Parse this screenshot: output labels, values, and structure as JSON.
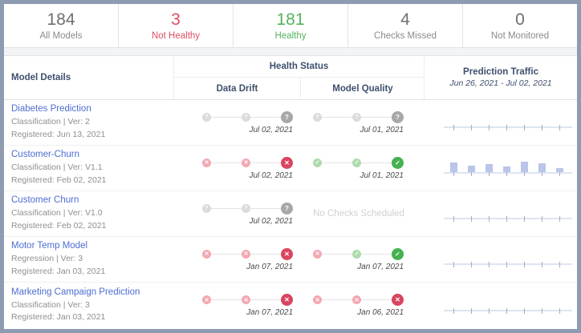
{
  "colors": {
    "frame": "#8e9cb2",
    "not_healthy_red": "#dd4f63",
    "healthy_green": "#54b25e",
    "link_blue": "#4e6dd2",
    "fail_dot": "#d9455f",
    "pass_dot": "#45b14f",
    "unknown_dot": "#a8a8a8",
    "traffic_bar": "#b9c5e9"
  },
  "summary_cards": [
    {
      "value": "184",
      "label": "All Models",
      "tone": "gray"
    },
    {
      "value": "3",
      "label": "Not Healthy",
      "tone": "red"
    },
    {
      "value": "181",
      "label": "Healthy",
      "tone": "green"
    },
    {
      "value": "4",
      "label": "Checks Missed",
      "tone": "gray"
    },
    {
      "value": "0",
      "label": "Not Monitored",
      "tone": "gray"
    }
  ],
  "table": {
    "headers": {
      "model_details": "Model Details",
      "health_status": "Health Status",
      "data_drift": "Data Drift",
      "model_quality": "Model Quality",
      "prediction_traffic": "Prediction Traffic",
      "traffic_range": "Jun 26, 2021 - Jul 02, 2021"
    },
    "rows": [
      {
        "name": "Diabetes Prediction",
        "meta1": "Classification | Ver: 2",
        "meta2": "Registered: Jun 13, 2021",
        "data_drift": {
          "dots": [
            "q",
            "q",
            "q"
          ],
          "date": "Jul 02, 2021"
        },
        "model_quality": {
          "dots": [
            "q",
            "q",
            "q"
          ],
          "date": "Jul 01, 2021"
        },
        "traffic": [
          0,
          0,
          0,
          0,
          0,
          0,
          0
        ]
      },
      {
        "name": "Customer-Churn",
        "meta1": "Classification | Ver: V1.1",
        "meta2": "Registered: Feb 02, 2021",
        "data_drift": {
          "dots": [
            "fail",
            "fail",
            "fail"
          ],
          "date": "Jul 02, 2021"
        },
        "model_quality": {
          "dots": [
            "pass",
            "pass",
            "pass"
          ],
          "date": "Jul 01, 2021"
        },
        "traffic": [
          65,
          45,
          55,
          40,
          75,
          63,
          30
        ]
      },
      {
        "name": "Customer Churn",
        "meta1": "Classification | Ver: V1.0",
        "meta2": "Registered: Feb 02, 2021",
        "data_drift": {
          "dots": [
            "q",
            "q",
            "q"
          ],
          "date": "Jul 02, 2021"
        },
        "model_quality": {
          "no_checks": "No Checks Scheduled"
        },
        "traffic": [
          0,
          0,
          0,
          0,
          0,
          0,
          0
        ]
      },
      {
        "name": "Motor Temp Model",
        "meta1": "Regression | Ver: 3",
        "meta2": "Registered: Jan 03, 2021",
        "data_drift": {
          "dots": [
            "fail",
            "fail",
            "fail"
          ],
          "date": "Jan 07, 2021"
        },
        "model_quality": {
          "dots": [
            "fail",
            "pass",
            "pass"
          ],
          "date": "Jan 07, 2021"
        },
        "traffic": [
          0,
          0,
          0,
          0,
          0,
          0,
          0
        ]
      },
      {
        "name": "Marketing Campaign Prediction",
        "meta1": "Classification | Ver: 3",
        "meta2": "Registered: Jan 03, 2021",
        "data_drift": {
          "dots": [
            "fail",
            "fail",
            "fail"
          ],
          "date": "Jan 07, 2021"
        },
        "model_quality": {
          "dots": [
            "fail",
            "fail",
            "fail"
          ],
          "date": "Jan 06, 2021"
        },
        "traffic": [
          0,
          0,
          0,
          0,
          0,
          0,
          0
        ]
      }
    ]
  }
}
